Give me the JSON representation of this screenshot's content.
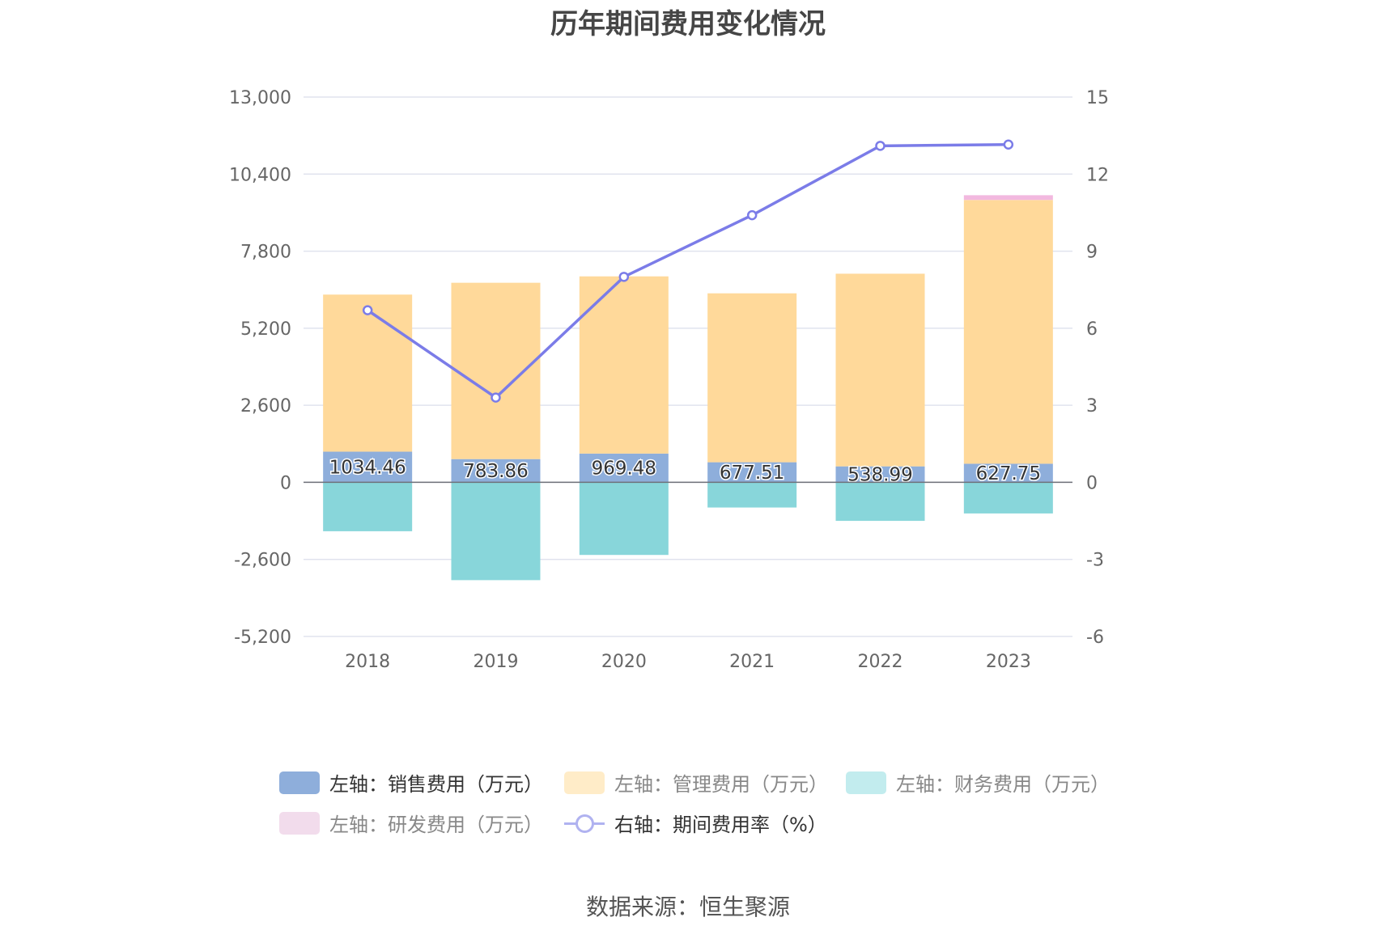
{
  "chart_data": {
    "type": "bar",
    "title": "历年期间费用变化情况",
    "categories": [
      "2018",
      "2019",
      "2020",
      "2021",
      "2022",
      "2023"
    ],
    "left_axis": {
      "ticks": [
        "13,000",
        "10,400",
        "7,800",
        "5,200",
        "2,600",
        "0",
        "-2,600",
        "-5,200"
      ],
      "ylim": [
        -5200,
        13000
      ]
    },
    "right_axis": {
      "ticks": [
        "15",
        "12",
        "9",
        "6",
        "3",
        "0",
        "-3",
        "-6"
      ],
      "ylim": [
        -6,
        15
      ]
    },
    "series": [
      {
        "name": "左轴：销售费用（万元）",
        "kind": "bar",
        "axis": "left",
        "color": "#8eaedb",
        "values": [
          1034.46,
          783.86,
          969.48,
          677.51,
          538.99,
          627.75
        ],
        "labels": [
          "1034.46",
          "783.86",
          "969.48",
          "677.51",
          "538.99",
          "627.75"
        ]
      },
      {
        "name": "左轴：管理费用（万元）",
        "kind": "bar",
        "axis": "left",
        "color": "#ffd99a",
        "values": [
          5300,
          5950,
          5980,
          5700,
          6500,
          8900
        ]
      },
      {
        "name": "左轴：财务费用（万元）",
        "kind": "bar",
        "axis": "left",
        "color": "#88d6da",
        "values": [
          -1650,
          -3300,
          -2450,
          -850,
          -1300,
          -1050
        ]
      },
      {
        "name": "左轴：研发费用（万元）",
        "kind": "bar",
        "axis": "left",
        "color": "#f2b8df",
        "values": [
          0,
          0,
          0,
          0,
          0,
          160
        ]
      },
      {
        "name": "右轴：期间费用率（%）",
        "kind": "line",
        "axis": "right",
        "color": "#7b7ce8",
        "values": [
          6.7,
          3.3,
          8.0,
          10.4,
          13.1,
          13.15
        ]
      }
    ],
    "grid": true,
    "legend_position": "bottom"
  },
  "legend": {
    "items": [
      {
        "label": "左轴：销售费用（万元）",
        "color": "#8eaedb",
        "dim": false
      },
      {
        "label": "左轴：管理费用（万元）",
        "color": "#ffecc8",
        "dim": true
      },
      {
        "label": "左轴：财务费用（万元）",
        "color": "#c2ecee",
        "dim": true
      },
      {
        "label": "左轴：研发费用（万元）",
        "color": "#f2dcec",
        "dim": true
      },
      {
        "label": "右轴：期间费用率（%）",
        "color": "#b0b2f0",
        "dim": false
      }
    ]
  },
  "source": "数据来源：恒生聚源"
}
